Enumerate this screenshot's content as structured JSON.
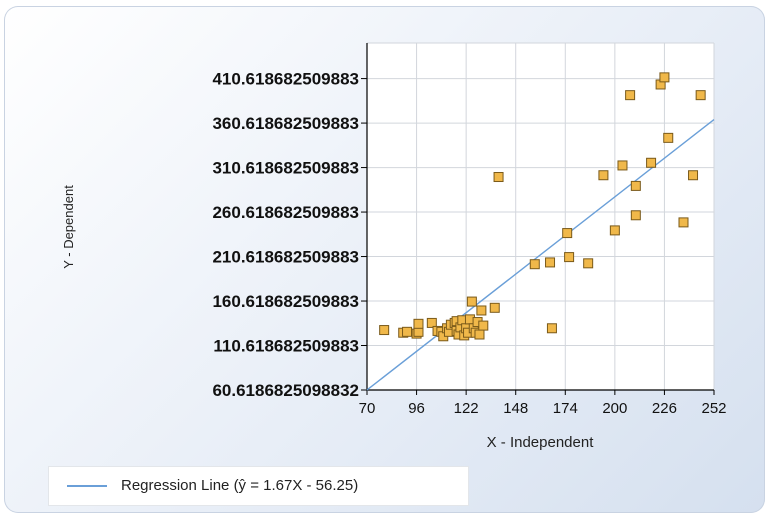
{
  "chart_data": {
    "type": "scatter",
    "title": "",
    "xlabel": "X - Independent",
    "ylabel": "Y - Dependent",
    "xlim": [
      70,
      252
    ],
    "ylim": [
      60.6186825098832,
      450.618682509883
    ],
    "x_ticks": [
      {
        "value": 70,
        "label": "70"
      },
      {
        "value": 96,
        "label": "96"
      },
      {
        "value": 122,
        "label": "122"
      },
      {
        "value": 148,
        "label": "148"
      },
      {
        "value": 174,
        "label": "174"
      },
      {
        "value": 200,
        "label": "200"
      },
      {
        "value": 226,
        "label": "226"
      },
      {
        "value": 252,
        "label": "252"
      }
    ],
    "y_ticks": [
      {
        "value": 60.6186825098832,
        "label": "60.6186825098832"
      },
      {
        "value": 110.618682509883,
        "label": "110.618682509883"
      },
      {
        "value": 160.618682509883,
        "label": "160.618682509883"
      },
      {
        "value": 210.618682509883,
        "label": "210.618682509883"
      },
      {
        "value": 260.618682509883,
        "label": "260.618682509883"
      },
      {
        "value": 310.618682509883,
        "label": "310.618682509883"
      },
      {
        "value": 360.618682509883,
        "label": "360.618682509883"
      },
      {
        "value": 410.618682509883,
        "label": "410.618682509883"
      }
    ],
    "grid": true,
    "legend_position": "bottom-left",
    "points": [
      [
        79,
        128
      ],
      [
        89,
        125
      ],
      [
        91,
        126
      ],
      [
        96,
        124
      ],
      [
        97,
        126
      ],
      [
        97,
        135
      ],
      [
        104,
        136
      ],
      [
        107,
        127
      ],
      [
        109,
        126
      ],
      [
        110,
        121
      ],
      [
        112,
        130
      ],
      [
        113,
        126
      ],
      [
        114,
        134
      ],
      [
        116,
        136
      ],
      [
        117,
        138
      ],
      [
        117,
        127
      ],
      [
        118,
        123
      ],
      [
        119,
        131
      ],
      [
        120,
        139
      ],
      [
        121,
        122
      ],
      [
        122,
        130
      ],
      [
        123,
        125
      ],
      [
        124,
        140
      ],
      [
        125,
        160
      ],
      [
        126,
        130
      ],
      [
        127,
        125
      ],
      [
        128,
        137
      ],
      [
        129,
        123
      ],
      [
        130,
        150
      ],
      [
        131,
        133
      ],
      [
        137,
        153
      ],
      [
        139,
        300
      ],
      [
        158,
        202
      ],
      [
        166,
        204
      ],
      [
        167,
        130
      ],
      [
        175,
        237
      ],
      [
        176,
        210
      ],
      [
        186,
        203
      ],
      [
        194,
        302
      ],
      [
        200,
        240
      ],
      [
        204,
        313
      ],
      [
        208,
        392
      ],
      [
        211,
        257
      ],
      [
        211,
        290
      ],
      [
        219,
        316
      ],
      [
        224,
        404
      ],
      [
        226,
        412
      ],
      [
        228,
        344
      ],
      [
        236,
        249
      ],
      [
        241,
        302
      ],
      [
        245,
        392
      ]
    ],
    "regression": {
      "label": "Regression Line (ŷ = 1.67X - 56.25)",
      "slope": 1.67,
      "intercept": -56.25
    },
    "colors": {
      "marker_fill": "#f0b84a",
      "marker_stroke": "#7a5a1a",
      "line": "#6a9fd8",
      "grid": "#d2d6dc",
      "axis": "#000000"
    }
  }
}
